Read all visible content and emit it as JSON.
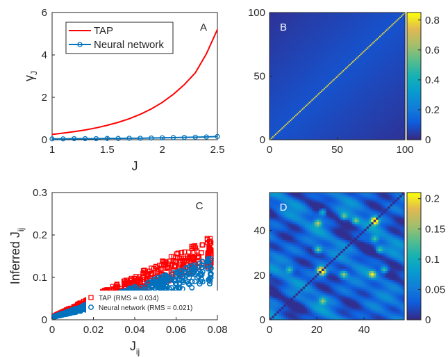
{
  "chart_data": [
    {
      "panel": "A",
      "type": "line",
      "xlabel": "J",
      "ylabel": "γJ",
      "xlim": [
        1,
        2.5
      ],
      "ylim": [
        0,
        6
      ],
      "xticks": [
        "1",
        "1.5",
        "2",
        "2.5"
      ],
      "yticks": [
        "0",
        "2",
        "4",
        "6"
      ],
      "legend_position": "top-left",
      "series": [
        {
          "name": "TAP",
          "color": "#ff0000",
          "marker": "none",
          "x": [
            1.0,
            1.1,
            1.2,
            1.3,
            1.4,
            1.5,
            1.6,
            1.7,
            1.8,
            1.9,
            2.0,
            2.1,
            2.2,
            2.3,
            2.4,
            2.5
          ],
          "y": [
            0.25,
            0.31,
            0.38,
            0.46,
            0.56,
            0.68,
            0.82,
            0.99,
            1.2,
            1.45,
            1.76,
            2.14,
            2.6,
            3.16,
            4.05,
            5.2
          ]
        },
        {
          "name": "Neural network",
          "color": "#0072bd",
          "marker": "circle",
          "x": [
            1.0,
            1.1,
            1.2,
            1.3,
            1.4,
            1.5,
            1.6,
            1.7,
            1.8,
            1.9,
            2.0,
            2.1,
            2.2,
            2.3,
            2.4,
            2.5
          ],
          "y": [
            0.04,
            0.04,
            0.05,
            0.05,
            0.05,
            0.06,
            0.06,
            0.07,
            0.07,
            0.08,
            0.09,
            0.1,
            0.11,
            0.12,
            0.13,
            0.15
          ]
        }
      ]
    },
    {
      "panel": "B",
      "type": "heatmap",
      "size": 100,
      "xlim": [
        0,
        100
      ],
      "ylim": [
        0,
        100
      ],
      "xticks": [
        "0",
        "50",
        "100"
      ],
      "yticks": [
        "0",
        "50",
        "100"
      ],
      "diagonal_value": 0.8,
      "offdiagonal_value": 0.05,
      "colorbar": {
        "min": 0,
        "max": 0.85,
        "ticks": [
          "0",
          "0.2",
          "0.4",
          "0.6",
          "0.8"
        ]
      }
    },
    {
      "panel": "C",
      "type": "scatter",
      "xlabel": "J",
      "xlabel_sub": "ij",
      "ylabel": "Inferred J",
      "ylabel_sub": "ij",
      "xlim": [
        0,
        0.08
      ],
      "ylim": [
        0,
        0.3
      ],
      "xticks": [
        "0",
        "0.02",
        "0.04",
        "0.06",
        "0.08"
      ],
      "yticks": [
        "0",
        "0.1",
        "0.2",
        "0.3"
      ],
      "legend_position": "bottom-right",
      "series": [
        {
          "name": "TAP (RMS = 0.034)",
          "color": "#ff0000",
          "marker": "square",
          "slope": 1.9,
          "spread": 0.55
        },
        {
          "name": "Neural network (RMS = 0.021)",
          "color": "#0072bd",
          "marker": "circle",
          "slope": 1.35,
          "spread": 0.45
        }
      ]
    },
    {
      "panel": "D",
      "type": "heatmap",
      "size": 57,
      "xlim": [
        0,
        57
      ],
      "ylim": [
        0,
        57
      ],
      "xticks": [
        "0",
        "20",
        "40"
      ],
      "yticks": [
        "0",
        "20",
        "40"
      ],
      "colorbar": {
        "min": 0,
        "max": 0.21,
        "ticks": [
          "0",
          "0.05",
          "0.1",
          "0.15",
          "0.2"
        ]
      }
    }
  ],
  "labels": {
    "A": "A",
    "B": "B",
    "C": "C",
    "D": "D"
  }
}
